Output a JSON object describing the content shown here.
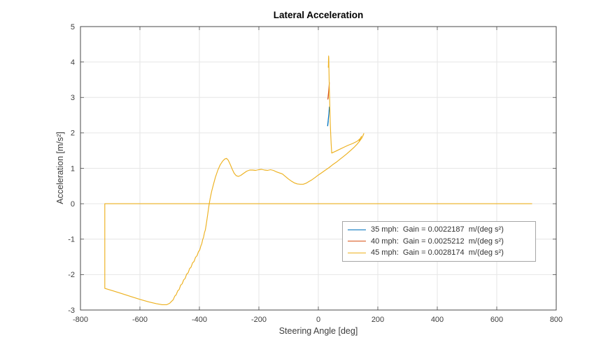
{
  "chart_data": {
    "type": "line",
    "title": "Lateral Acceleration",
    "xlabel": "Steering Angle [deg]",
    "ylabel": "Acceleration [m/s²]",
    "xlim": [
      -800,
      800
    ],
    "ylim": [
      -3,
      5
    ],
    "xticks": [
      -800,
      -600,
      -400,
      -200,
      0,
      200,
      400,
      600,
      800
    ],
    "yticks": [
      -3,
      -2,
      -1,
      0,
      1,
      2,
      3,
      4,
      5
    ],
    "grid": true,
    "legend_position": "inside-right",
    "colors": {
      "axis": "#4a4a4a",
      "grid": "#e6e6e6",
      "tick_label": "#3d3d3d",
      "background": "#ffffff"
    },
    "series": [
      {
        "id": "35mph",
        "name": "35 mph:  Gain = 0.0022187  m/(deg s²)",
        "color": "#0072BD",
        "points": [
          [
            31,
            2.2
          ],
          [
            32.5,
            2.3
          ],
          [
            34,
            2.42
          ],
          [
            35.5,
            2.55
          ],
          [
            36.5,
            2.66
          ],
          [
            37,
            2.73
          ],
          [
            36.2,
            2.62
          ],
          [
            35,
            2.5
          ],
          [
            33.5,
            2.36
          ],
          [
            32.3,
            2.26
          ],
          [
            31.5,
            2.2
          ],
          [
            32.5,
            2.27
          ],
          [
            33.5,
            2.33
          ]
        ]
      },
      {
        "id": "40mph",
        "name": "40 mph:  Gain = 0.0025212  m/(deg s²)",
        "color": "#D95319",
        "points": [
          [
            32,
            2.95
          ],
          [
            33.5,
            3.07
          ],
          [
            35,
            3.2
          ],
          [
            36.2,
            3.32
          ],
          [
            37,
            3.42
          ],
          [
            36.3,
            3.33
          ],
          [
            35,
            3.2
          ],
          [
            33.6,
            3.07
          ],
          [
            32.6,
            2.97
          ],
          [
            33.2,
            3.0
          ],
          [
            34.2,
            3.08
          ],
          [
            33.4,
            3.02
          ]
        ]
      },
      {
        "id": "45mph",
        "name": "45 mph:  Gain = 0.0028174  m/(deg s²)",
        "color": "#EDB120",
        "points": [
          [
            0,
            0
          ],
          [
            718,
            0
          ],
          [
            -718,
            0
          ],
          [
            -718,
            -2.39
          ],
          [
            -690,
            -2.46
          ],
          [
            -660,
            -2.54
          ],
          [
            -630,
            -2.62
          ],
          [
            -600,
            -2.7
          ],
          [
            -570,
            -2.77
          ],
          [
            -545,
            -2.82
          ],
          [
            -525,
            -2.85
          ],
          [
            -510,
            -2.85
          ],
          [
            -500,
            -2.81
          ],
          [
            -493,
            -2.75
          ],
          [
            -488,
            -2.71
          ],
          [
            -483,
            -2.61
          ],
          [
            -478,
            -2.57
          ],
          [
            -473,
            -2.46
          ],
          [
            -468,
            -2.42
          ],
          [
            -463,
            -2.3
          ],
          [
            -458,
            -2.26
          ],
          [
            -453,
            -2.15
          ],
          [
            -448,
            -2.11
          ],
          [
            -443,
            -1.99
          ],
          [
            -438,
            -1.95
          ],
          [
            -433,
            -1.83
          ],
          [
            -428,
            -1.79
          ],
          [
            -423,
            -1.67
          ],
          [
            -418,
            -1.63
          ],
          [
            -413,
            -1.51
          ],
          [
            -408,
            -1.47
          ],
          [
            -403,
            -1.35
          ],
          [
            -399,
            -1.31
          ],
          [
            -395,
            -1.19
          ],
          [
            -392,
            -1.13
          ],
          [
            -389,
            -1.01
          ],
          [
            -386,
            -0.95
          ],
          [
            -383,
            -0.82
          ],
          [
            -380,
            -0.74
          ],
          [
            -377,
            -0.58
          ],
          [
            -374,
            -0.42
          ],
          [
            -371,
            -0.24
          ],
          [
            -368,
            -0.06
          ],
          [
            -364,
            0.14
          ],
          [
            -359,
            0.34
          ],
          [
            -353,
            0.54
          ],
          [
            -346,
            0.75
          ],
          [
            -338,
            0.95
          ],
          [
            -330,
            1.1
          ],
          [
            -322,
            1.2
          ],
          [
            -315,
            1.26
          ],
          [
            -309,
            1.28
          ],
          [
            -303,
            1.23
          ],
          [
            -297,
            1.12
          ],
          [
            -290,
            0.98
          ],
          [
            -283,
            0.86
          ],
          [
            -276,
            0.79
          ],
          [
            -269,
            0.77
          ],
          [
            -261,
            0.8
          ],
          [
            -251,
            0.86
          ],
          [
            -241,
            0.92
          ],
          [
            -231,
            0.95
          ],
          [
            -221,
            0.95
          ],
          [
            -211,
            0.94
          ],
          [
            -201,
            0.96
          ],
          [
            -191,
            0.97
          ],
          [
            -181,
            0.95
          ],
          [
            -171,
            0.94
          ],
          [
            -161,
            0.96
          ],
          [
            -151,
            0.94
          ],
          [
            -141,
            0.9
          ],
          [
            -131,
            0.87
          ],
          [
            -121,
            0.84
          ],
          [
            -111,
            0.77
          ],
          [
            -101,
            0.7
          ],
          [
            -91,
            0.64
          ],
          [
            -81,
            0.59
          ],
          [
            -71,
            0.56
          ],
          [
            -61,
            0.55
          ],
          [
            -51,
            0.55
          ],
          [
            -41,
            0.58
          ],
          [
            -31,
            0.63
          ],
          [
            -21,
            0.68
          ],
          [
            -11,
            0.74
          ],
          [
            0,
            0.81
          ],
          [
            12,
            0.88
          ],
          [
            24,
            0.95
          ],
          [
            36,
            1.02
          ],
          [
            48,
            1.1
          ],
          [
            60,
            1.17
          ],
          [
            72,
            1.25
          ],
          [
            84,
            1.33
          ],
          [
            96,
            1.41
          ],
          [
            108,
            1.5
          ],
          [
            120,
            1.59
          ],
          [
            130,
            1.68
          ],
          [
            138,
            1.76
          ],
          [
            144,
            1.83
          ],
          [
            149,
            1.9
          ],
          [
            153,
            1.98
          ],
          [
            150,
            1.92
          ],
          [
            146,
            1.85
          ],
          [
            141,
            1.8
          ],
          [
            137,
            1.78
          ],
          [
            141,
            1.84
          ],
          [
            145,
            1.9
          ],
          [
            142,
            1.85
          ],
          [
            130,
            1.76
          ],
          [
            115,
            1.7
          ],
          [
            100,
            1.65
          ],
          [
            85,
            1.59
          ],
          [
            70,
            1.53
          ],
          [
            58,
            1.48
          ],
          [
            50,
            1.45
          ],
          [
            45,
            1.43
          ],
          [
            43,
            1.7
          ],
          [
            41.5,
            2.0
          ],
          [
            40,
            2.3
          ],
          [
            39,
            2.6
          ],
          [
            38,
            2.9
          ],
          [
            37.2,
            3.2
          ],
          [
            36.5,
            3.45
          ],
          [
            36,
            3.65
          ],
          [
            35.6,
            3.85
          ],
          [
            35.3,
            4.0
          ],
          [
            35,
            4.12
          ],
          [
            34.6,
            4.17
          ],
          [
            34.2,
            4.05
          ],
          [
            33.8,
            3.92
          ],
          [
            33.5,
            3.85
          ],
          [
            34.3,
            3.96
          ],
          [
            35,
            4.02
          ],
          [
            34.5,
            3.9
          ]
        ]
      }
    ]
  }
}
